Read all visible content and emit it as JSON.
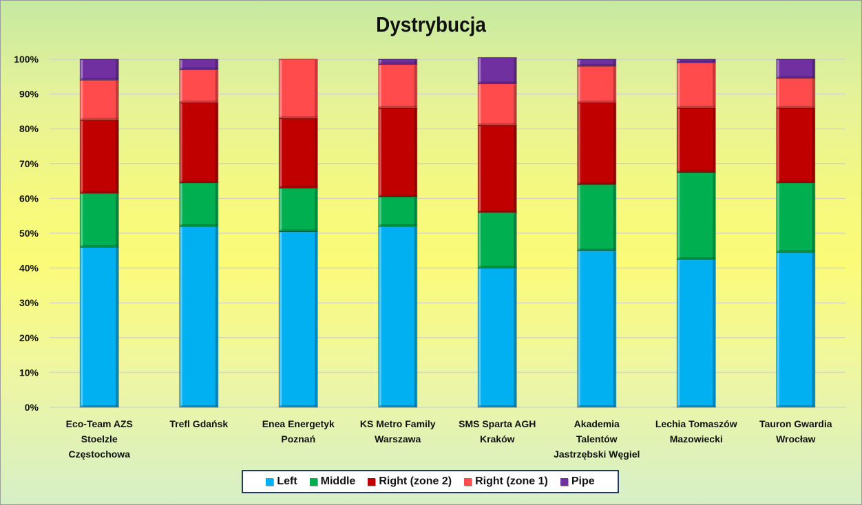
{
  "chart_data": {
    "type": "bar",
    "stacked": "percent",
    "title": "Dystrybucja",
    "ylim": [
      0,
      100
    ],
    "yticks": [
      "0%",
      "10%",
      "20%",
      "30%",
      "40%",
      "50%",
      "60%",
      "70%",
      "80%",
      "90%",
      "100%"
    ],
    "grid": true,
    "legend_position": "bottom",
    "categories": [
      [
        "Eco-Team AZS",
        "Stoelzle",
        "Częstochowa"
      ],
      [
        "Trefl Gdańsk"
      ],
      [
        "Enea Energetyk",
        "Poznań"
      ],
      [
        "KS Metro Family",
        "Warszawa"
      ],
      [
        "SMS Sparta AGH",
        "Kraków"
      ],
      [
        "Akademia",
        "Talentów",
        "Jastrzębski Węgiel"
      ],
      [
        "Lechia Tomaszów",
        "Mazowiecki"
      ],
      [
        "Tauron Gwardia",
        "Wrocław"
      ]
    ],
    "series": [
      {
        "name": "Left",
        "color": "#00b0f0",
        "values": [
          46,
          52,
          50.5,
          52,
          40,
          45,
          42.5,
          44.5
        ]
      },
      {
        "name": "Middle",
        "color": "#00b050",
        "values": [
          15.5,
          12.5,
          12.5,
          8.5,
          16,
          19,
          25,
          20
        ]
      },
      {
        "name": "Right (zone 2)",
        "color": "#c00000",
        "values": [
          21,
          23,
          20,
          25.5,
          25,
          23.5,
          18.5,
          21.5
        ]
      },
      {
        "name": "Right (zone 1)",
        "color": "#ff4b4b",
        "values": [
          11.5,
          9.5,
          17,
          12.5,
          12,
          10.5,
          13,
          8.5
        ]
      },
      {
        "name": "Pipe",
        "color": "#7030a0",
        "values": [
          6,
          3,
          0,
          1.5,
          7.5,
          2,
          1,
          5.5
        ]
      }
    ]
  }
}
